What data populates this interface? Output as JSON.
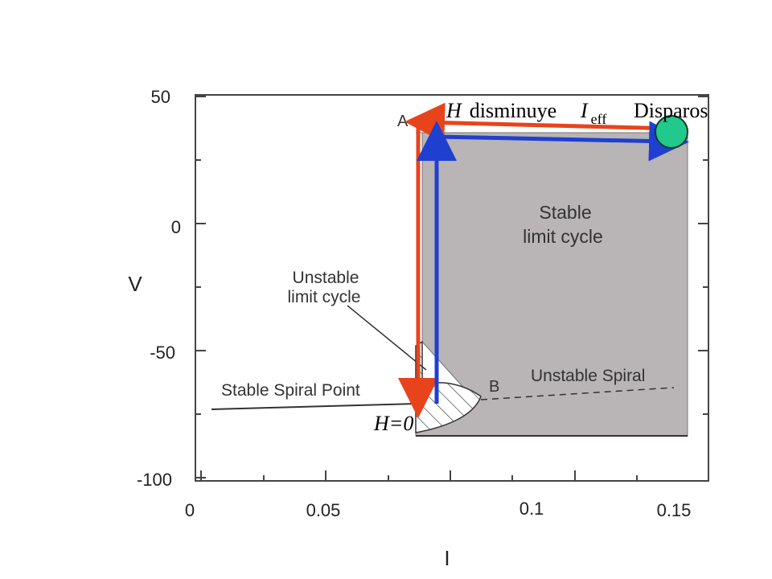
{
  "plot": {
    "xlabel": "I",
    "ylabel": "V",
    "x_ticks": [
      "0",
      "0.05",
      "0.1",
      "0.15"
    ],
    "y_ticks": [
      "50",
      "0",
      "-50",
      "-100"
    ]
  },
  "regions": {
    "stable_limit_cycle": [
      "Stable",
      "limit cycle"
    ],
    "unstable_limit_cycle": [
      "Unstable",
      "limit cycle"
    ],
    "unstable_spiral": "Unstable Spiral",
    "stable_spiral_point": "Stable Spiral Point"
  },
  "points": {
    "a": "A",
    "b": "B"
  },
  "overlay": {
    "h_label": "H",
    "decrease_text": "disminuye",
    "i_label": "I",
    "i_subscript": "eff",
    "firing_text": "Disparos",
    "h_zero_label": "H=0"
  },
  "colors": {
    "shading": "#b9b4b5",
    "red_arrow": "#e8441c",
    "blue_arrow": "#1f3fd1",
    "green_dot": "#22c98d"
  }
}
